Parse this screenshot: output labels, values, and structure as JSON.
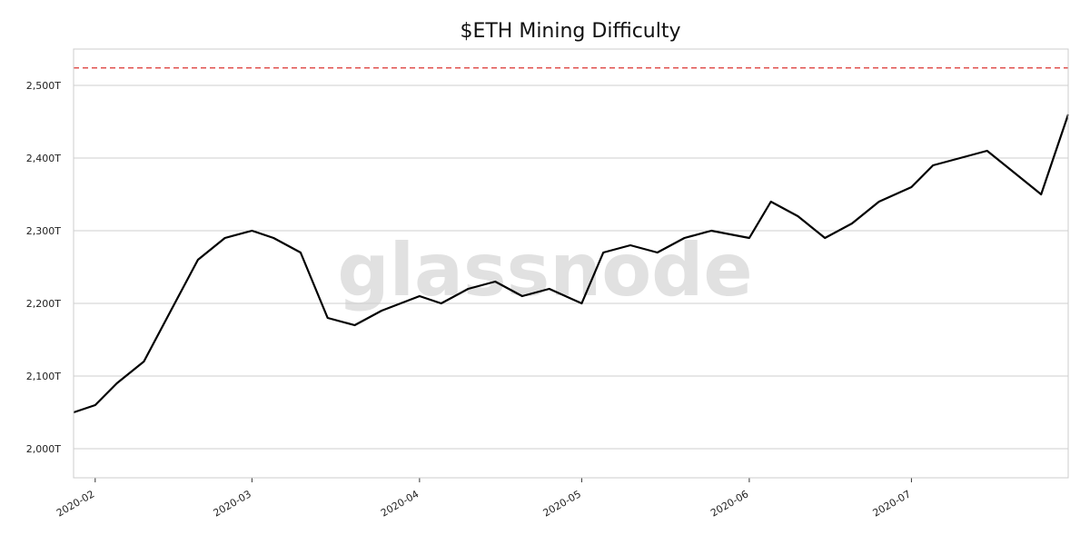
{
  "chart_data": {
    "type": "line",
    "title": "$ETH Mining Difficulty",
    "watermark": "glassnode",
    "xlabel": "",
    "ylabel": "",
    "x_range": [
      "2020-01-28",
      "2020-07-30"
    ],
    "ylim": [
      1960,
      2550
    ],
    "y_ticks": [
      {
        "value": 2000,
        "label": "2,000T"
      },
      {
        "value": 2100,
        "label": "2,100T"
      },
      {
        "value": 2200,
        "label": "2,200T"
      },
      {
        "value": 2300,
        "label": "2,300T"
      },
      {
        "value": 2400,
        "label": "2,400T"
      },
      {
        "value": 2500,
        "label": "2,500T"
      }
    ],
    "x_ticks": [
      {
        "date": "2020-02-01",
        "label": "2020-02"
      },
      {
        "date": "2020-03-01",
        "label": "2020-03"
      },
      {
        "date": "2020-04-01",
        "label": "2020-04"
      },
      {
        "date": "2020-05-01",
        "label": "2020-05"
      },
      {
        "date": "2020-06-01",
        "label": "2020-06"
      },
      {
        "date": "2020-07-01",
        "label": "2020-07"
      }
    ],
    "reference_line": {
      "value": 2524,
      "style": "dashed",
      "color": "#e0524f"
    },
    "grid": {
      "y": true,
      "x": false
    },
    "colors": {
      "line": "#000000",
      "grid": "#cfcfcf",
      "frame": "#cccccc"
    },
    "series": [
      {
        "x": [
          "2020-01-28",
          "2020-02-01",
          "2020-02-05",
          "2020-02-10",
          "2020-02-15",
          "2020-02-20",
          "2020-02-25",
          "2020-03-01",
          "2020-03-05",
          "2020-03-10",
          "2020-03-15",
          "2020-03-20",
          "2020-03-25",
          "2020-04-01",
          "2020-04-05",
          "2020-04-10",
          "2020-04-15",
          "2020-04-20",
          "2020-04-25",
          "2020-05-01",
          "2020-05-05",
          "2020-05-10",
          "2020-05-15",
          "2020-05-20",
          "2020-05-25",
          "2020-06-01",
          "2020-06-05",
          "2020-06-10",
          "2020-06-15",
          "2020-06-20",
          "2020-06-25",
          "2020-07-01",
          "2020-07-05",
          "2020-07-10",
          "2020-07-15",
          "2020-07-20",
          "2020-07-25",
          "2020-07-30"
        ],
        "values": [
          2050,
          2060,
          2090,
          2120,
          2190,
          2260,
          2290,
          2300,
          2290,
          2270,
          2180,
          2170,
          2190,
          2210,
          2200,
          2220,
          2230,
          2210,
          2220,
          2200,
          2270,
          2280,
          2270,
          2290,
          2300,
          2290,
          2340,
          2320,
          2290,
          2310,
          2340,
          2360,
          2390,
          2400,
          2410,
          2380,
          2350,
          2460
        ]
      }
    ]
  }
}
